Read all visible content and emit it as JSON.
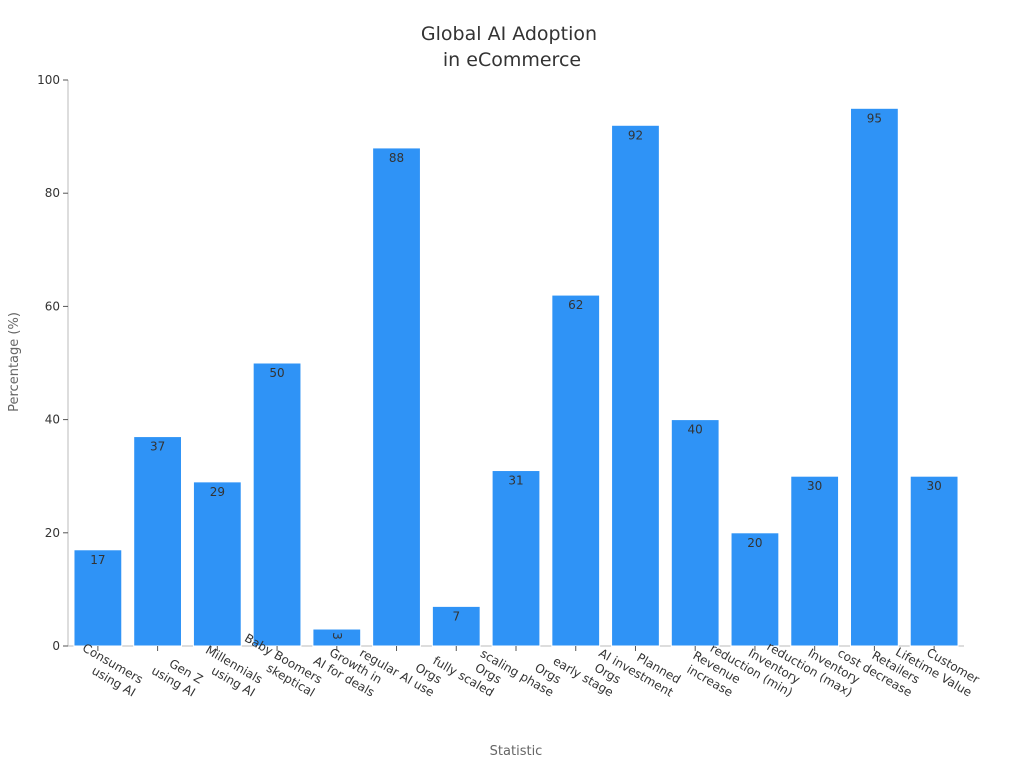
{
  "chart_data": {
    "type": "bar",
    "title": "Global AI Adoption in eCommerce",
    "title_lines": [
      "Global AI Adoption",
      "in eCommerce"
    ],
    "xlabel": "Statistic",
    "ylabel": "Percentage (%)",
    "ylim": [
      0,
      100
    ],
    "yticks": [
      "0",
      "20",
      "40",
      "60",
      "80",
      "100"
    ],
    "categories": [
      "Consumers using AI",
      "Gen Z using AI",
      "Millennials using AI",
      "Baby Boomers skeptical",
      "Growth in AI for deals",
      "Orgs regular AI use",
      "Orgs fully scaled",
      "Orgs scaling phase",
      "Orgs early stage",
      "Planned AI investment",
      "Revenue increase",
      "Inventory reduction (min)",
      "Inventory reduction (max)",
      "Retailers cost decrease",
      "Customer Lifetime Value"
    ],
    "category_lines": [
      [
        "Consumers",
        "using AI"
      ],
      [
        "Gen Z",
        "using AI"
      ],
      [
        "Millennials",
        "using AI"
      ],
      [
        "Baby Boomers",
        "skeptical"
      ],
      [
        "Growth in",
        "AI for deals"
      ],
      [
        "Orgs",
        "regular AI use"
      ],
      [
        "Orgs",
        "fully scaled"
      ],
      [
        "Orgs",
        "scaling phase"
      ],
      [
        "Orgs",
        "early stage"
      ],
      [
        "Planned",
        "AI investment"
      ],
      [
        "Revenue",
        "increase"
      ],
      [
        "Inventory",
        "reduction (min)"
      ],
      [
        "Inventory",
        "reduction (max)"
      ],
      [
        "Retailers",
        "cost decrease"
      ],
      [
        "Customer",
        "Lifetime Value"
      ]
    ],
    "values": [
      17,
      37,
      29,
      50,
      3,
      88,
      7,
      31,
      62,
      92,
      40,
      20,
      30,
      95,
      30
    ],
    "bar_color": "#2f93f6",
    "bar_edge_color": "#ffffff",
    "grid": false
  }
}
